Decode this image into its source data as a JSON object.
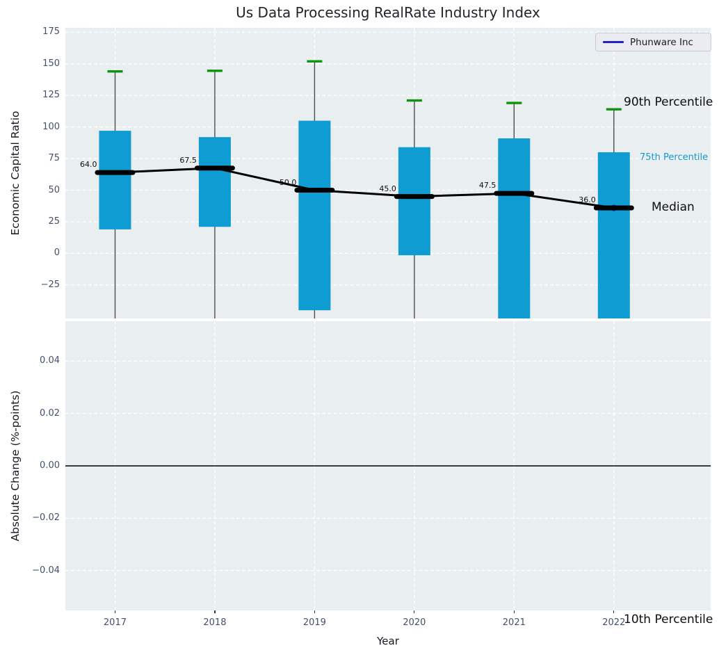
{
  "title": "Us Data Processing RealRate Industry Index",
  "legend": {
    "entries": [
      "Phunware Inc"
    ]
  },
  "annotations": {
    "p90": "90th Percentile",
    "p75": "75th Percentile",
    "median": "Median",
    "p10": "10th Percentile"
  },
  "colors": {
    "box_fill": "#0e9cd3",
    "whisker_cap_green": "#0f930f",
    "whisker_line": "#4d4d4d",
    "median_black": "#000000",
    "phunware_navy": "#2222cc",
    "panel_background": "#e9eef0",
    "grid_white": "#ffffff",
    "tick_label": "#42506b",
    "p75_annotation_cyan": "#1598cc",
    "zero_line": "#000000"
  },
  "chart_data": [
    {
      "type": "boxplot",
      "panel": "top",
      "title": "Us Data Processing RealRate Industry Index",
      "xlabel": "Year",
      "ylabel": "Economic Capital Ratio",
      "categories": [
        "2017",
        "2018",
        "2019",
        "2020",
        "2021",
        "2022"
      ],
      "yticks": [
        175,
        150,
        125,
        100,
        75,
        50,
        25,
        0,
        -25
      ],
      "ylim": [
        -51.5,
        178.5
      ],
      "grid": "white-dashed",
      "median": [
        64.0,
        67.5,
        50.0,
        45.0,
        47.5,
        36.0
      ],
      "median_labels": [
        "64.0",
        "67.5",
        "50.0",
        "45.0",
        "47.5",
        "36.0"
      ],
      "p90": [
        144,
        144.5,
        152,
        121,
        119,
        114
      ],
      "p75": [
        97,
        92,
        105,
        84,
        91,
        80
      ],
      "p25": [
        19,
        21,
        -45,
        -1.5,
        null,
        null
      ],
      "p10": [
        null,
        null,
        null,
        null,
        null,
        null
      ],
      "note_nulls": "null = extends below visible axis range (clipped)",
      "legend": [
        "Phunware Inc"
      ],
      "legend_position": "upper right",
      "phunware_point": {
        "x": "2022",
        "y": 36.0
      }
    },
    {
      "type": "line",
      "panel": "bottom",
      "xlabel": "Year",
      "ylabel": "Absolute Change (%-points)",
      "yticks": [
        0.04,
        0.02,
        0.0,
        -0.02,
        -0.04
      ],
      "ylim": [
        -0.0552,
        0.0552
      ],
      "grid": "white-dashed",
      "zero_line": 0.0,
      "series": []
    }
  ]
}
